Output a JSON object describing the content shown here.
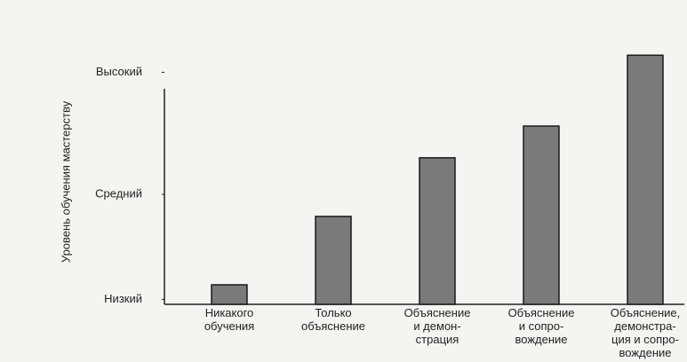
{
  "chart_data": {
    "type": "bar",
    "ylabel": "Уровень обучения мастерству",
    "categories": [
      [
        "Никакого",
        "обучения"
      ],
      [
        "Только",
        "объяснение"
      ],
      [
        "Объяснение",
        "и демон-",
        "страция"
      ],
      [
        "Объяснение",
        "и сопро-",
        "вождение"
      ],
      [
        "Объяснение,",
        "демонстра-",
        "ция и сопро-",
        "вождение"
      ]
    ],
    "values": [
      0.8,
      3.6,
      6.0,
      7.3,
      10.2
    ],
    "color": "#7a7a7a",
    "ylim": [
      0,
      10.5
    ],
    "yticks": [
      {
        "value": 0.2,
        "label": "Низкий"
      },
      {
        "value": 4.5,
        "label": "Средний"
      },
      {
        "value": 9.5,
        "label": "Высокий"
      }
    ],
    "grid": false
  }
}
